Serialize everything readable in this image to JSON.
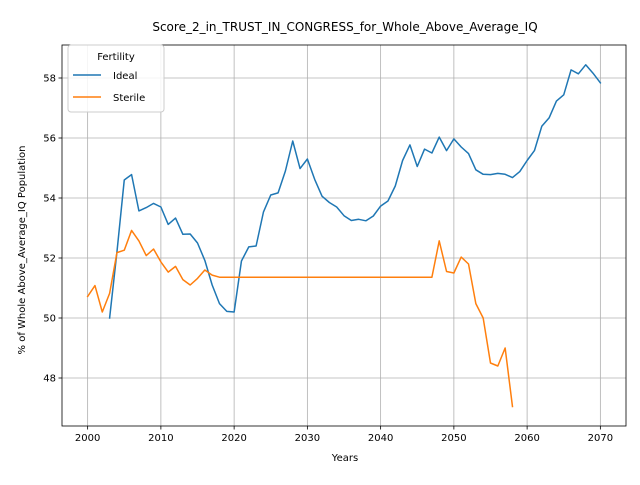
{
  "chart_data": {
    "type": "line",
    "title": "Score_2_in_TRUST_IN_CONGRESS_for_Whole_Above_Average_IQ",
    "xlabel": "Years",
    "ylabel": "% of Whole Above_Average_IQ Population",
    "xlim": [
      1996.5,
      2073.5
    ],
    "ylim": [
      46.4,
      59.1
    ],
    "xticks": [
      2000,
      2010,
      2020,
      2030,
      2040,
      2050,
      2060,
      2070
    ],
    "yticks": [
      48,
      50,
      52,
      54,
      56,
      58
    ],
    "grid": true,
    "legend": {
      "title": "Fertility",
      "position": "top-left"
    },
    "series": [
      {
        "name": "Ideal",
        "color": "#1f77b4",
        "x": [
          2003,
          2004,
          2005,
          2006,
          2007,
          2008,
          2009,
          2010,
          2011,
          2012,
          2013,
          2014,
          2015,
          2016,
          2017,
          2018,
          2019,
          2020,
          2021,
          2022,
          2023,
          2024,
          2025,
          2026,
          2027,
          2028,
          2029,
          2030,
          2031,
          2032,
          2033,
          2034,
          2035,
          2036,
          2037,
          2038,
          2039,
          2040,
          2041,
          2042,
          2043,
          2044,
          2045,
          2046,
          2047,
          2048,
          2049,
          2050,
          2051,
          2052,
          2053,
          2054,
          2055,
          2056,
          2057,
          2058,
          2059,
          2060,
          2061,
          2062,
          2063,
          2064,
          2065,
          2066,
          2067,
          2068,
          2069,
          2070
        ],
        "values": [
          50.0,
          52.2,
          54.6,
          54.78,
          53.57,
          53.68,
          53.82,
          53.7,
          53.12,
          53.33,
          52.79,
          52.8,
          52.5,
          51.92,
          51.1,
          50.48,
          50.22,
          50.2,
          51.9,
          52.37,
          52.4,
          53.53,
          54.1,
          54.17,
          54.9,
          55.9,
          54.98,
          55.3,
          54.62,
          54.06,
          53.85,
          53.7,
          53.41,
          53.25,
          53.29,
          53.24,
          53.4,
          53.73,
          53.9,
          54.4,
          55.25,
          55.77,
          55.05,
          55.63,
          55.5,
          56.03,
          55.58,
          55.97,
          55.7,
          55.48,
          54.94,
          54.79,
          54.78,
          54.82,
          54.79,
          54.68,
          54.88,
          55.25,
          55.58,
          56.39,
          56.67,
          57.23,
          57.44,
          58.27,
          58.14,
          58.44,
          58.16,
          57.84
        ]
      },
      {
        "name": "Sterile",
        "color": "#ff7f0e",
        "x": [
          2000,
          2001,
          2002,
          2003,
          2004,
          2005,
          2006,
          2007,
          2008,
          2009,
          2010,
          2011,
          2012,
          2013,
          2014,
          2015,
          2016,
          2017,
          2018,
          2019,
          2020,
          2021,
          2022,
          2023,
          2024,
          2025,
          2026,
          2027,
          2028,
          2029,
          2030,
          2031,
          2032,
          2033,
          2034,
          2035,
          2036,
          2037,
          2038,
          2039,
          2040,
          2041,
          2042,
          2043,
          2044,
          2045,
          2046,
          2047,
          2048,
          2049,
          2050,
          2051,
          2052,
          2053,
          2054,
          2055,
          2056,
          2057,
          2058
        ],
        "values": [
          50.72,
          51.08,
          50.2,
          50.82,
          52.18,
          52.26,
          52.92,
          52.57,
          52.08,
          52.3,
          51.87,
          51.53,
          51.72,
          51.28,
          51.1,
          51.32,
          51.6,
          51.43,
          51.36,
          51.36,
          51.36,
          51.36,
          51.36,
          51.36,
          51.36,
          51.36,
          51.36,
          51.36,
          51.36,
          51.36,
          51.36,
          51.36,
          51.36,
          51.36,
          51.36,
          51.36,
          51.36,
          51.36,
          51.36,
          51.36,
          51.36,
          51.36,
          51.36,
          51.36,
          51.36,
          51.36,
          51.36,
          51.36,
          52.57,
          51.55,
          51.5,
          52.03,
          51.8,
          50.48,
          50.0,
          48.5,
          48.4,
          49.0,
          47.05
        ]
      }
    ]
  }
}
